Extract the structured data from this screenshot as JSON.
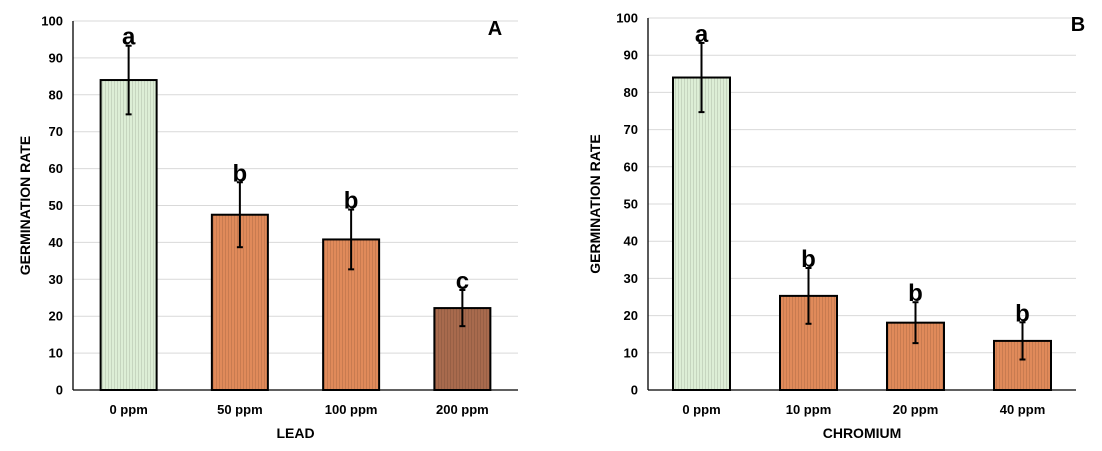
{
  "chart_data": [
    {
      "type": "bar",
      "panel_label": "A",
      "xlabel": "LEAD",
      "ylabel": "GERMINATION RATE",
      "ylim": [
        0,
        100
      ],
      "yticks": [
        0,
        10,
        20,
        30,
        40,
        50,
        60,
        70,
        80,
        90,
        100
      ],
      "grid": true,
      "categories": [
        "0 ppm",
        "50 ppm",
        "100 ppm",
        "200 ppm"
      ],
      "values": [
        84,
        47.5,
        40.8,
        22.2
      ],
      "errors": [
        9.3,
        8.8,
        8.1,
        4.9
      ],
      "letters": [
        "a",
        "b",
        "b",
        "c"
      ],
      "bar_colors": [
        "#ddeed6",
        "#e08a5a",
        "#e08a5a",
        "#a86a4d"
      ]
    },
    {
      "type": "bar",
      "panel_label": "B",
      "xlabel": "CHROMIUM",
      "ylabel": "GERMINATION RATE",
      "ylim": [
        0,
        100
      ],
      "yticks": [
        0,
        10,
        20,
        30,
        40,
        50,
        60,
        70,
        80,
        90,
        100
      ],
      "grid": true,
      "categories": [
        "0 ppm",
        "10 ppm",
        "20 ppm",
        "40 ppm"
      ],
      "values": [
        84,
        25.3,
        18.1,
        13.2
      ],
      "errors": [
        9.3,
        7.5,
        5.5,
        5.0
      ],
      "letters": [
        "a",
        "b",
        "b",
        "b"
      ],
      "bar_colors": [
        "#ddeed6",
        "#e08a5a",
        "#e08a5a",
        "#e08a5a"
      ]
    }
  ]
}
